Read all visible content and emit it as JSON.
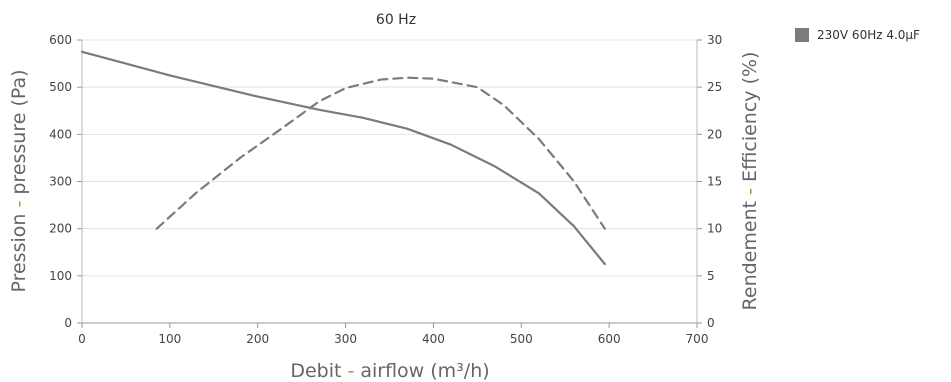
{
  "chart_data": {
    "type": "line",
    "title": "60 Hz",
    "xlabel_parts": [
      "Debit",
      " - ",
      "airflow (m³/h)"
    ],
    "ylabel_parts": [
      "Pression",
      " - ",
      "pressure (Pa)"
    ],
    "y2label_parts": [
      "Rendement",
      " - ",
      "Efficiency (%)"
    ],
    "label_colors": {
      "fr": "#666666",
      "sep": "#9aa02a",
      "en": "#666666"
    },
    "xlim": [
      0,
      700
    ],
    "ylim": [
      0,
      600
    ],
    "y2lim": [
      0,
      30
    ],
    "xticks": [
      0,
      100,
      200,
      300,
      400,
      500,
      600,
      700
    ],
    "yticks": [
      0,
      100,
      200,
      300,
      400,
      500,
      600
    ],
    "y2ticks": [
      0,
      5,
      10,
      15,
      20,
      25,
      30
    ],
    "grid": "horizontal",
    "legend_position": "top-right",
    "legend": [
      {
        "label": "230V 60Hz 4.0µF",
        "color": "#7b7b7b"
      }
    ],
    "series": [
      {
        "axis": "left",
        "style": "solid",
        "color": "#7b7b7b",
        "x": [
          0,
          100,
          200,
          270,
          320,
          370,
          420,
          470,
          520,
          560,
          595
        ],
        "y": [
          575,
          525,
          480,
          452,
          435,
          412,
          378,
          332,
          275,
          205,
          125
        ]
      },
      {
        "axis": "right",
        "style": "dashed",
        "color": "#7b7b7b",
        "x": [
          85,
          130,
          180,
          230,
          270,
          300,
          340,
          370,
          400,
          450,
          480,
          520,
          560,
          595
        ],
        "y": [
          10,
          13.8,
          17.5,
          20.8,
          23.5,
          24.9,
          25.8,
          26,
          25.9,
          25,
          23.1,
          19.5,
          15,
          10
        ]
      }
    ]
  }
}
